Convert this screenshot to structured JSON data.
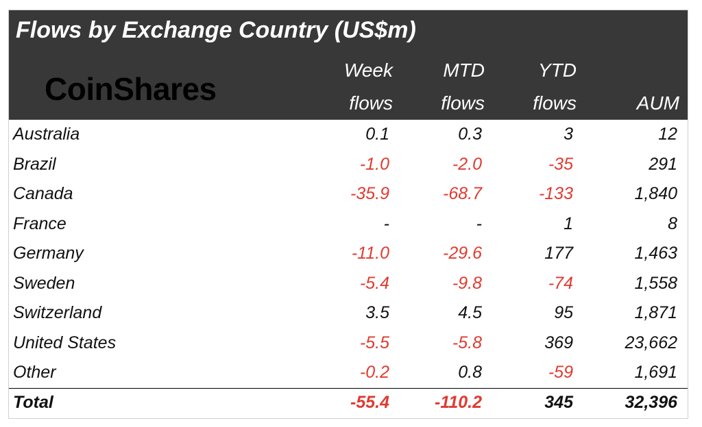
{
  "chart_data": {
    "type": "table",
    "title": "Flows by Exchange Country (US$m)",
    "brand": "CoinShares",
    "columns": [
      {
        "line1": "Week",
        "line2": "flows"
      },
      {
        "line1": "MTD",
        "line2": "flows"
      },
      {
        "line1": "YTD",
        "line2": "flows"
      },
      {
        "line1": "",
        "line2": "AUM"
      }
    ],
    "rows": [
      {
        "country": "Australia",
        "week": "0.1",
        "mtd": "0.3",
        "ytd": "3",
        "aum": "12"
      },
      {
        "country": "Brazil",
        "week": "-1.0",
        "mtd": "-2.0",
        "ytd": "-35",
        "aum": "291"
      },
      {
        "country": "Canada",
        "week": "-35.9",
        "mtd": "-68.7",
        "ytd": "-133",
        "aum": "1,840"
      },
      {
        "country": "France",
        "week": "-",
        "mtd": "-",
        "ytd": "1",
        "aum": "8"
      },
      {
        "country": "Germany",
        "week": "-11.0",
        "mtd": "-29.6",
        "ytd": "177",
        "aum": "1,463"
      },
      {
        "country": "Sweden",
        "week": "-5.4",
        "mtd": "-9.8",
        "ytd": "-74",
        "aum": "1,558"
      },
      {
        "country": "Switzerland",
        "week": "3.5",
        "mtd": "4.5",
        "ytd": "95",
        "aum": "1,871"
      },
      {
        "country": "United States",
        "week": "-5.5",
        "mtd": "-5.8",
        "ytd": "369",
        "aum": "23,662"
      },
      {
        "country": "Other",
        "week": "-0.2",
        "mtd": "0.8",
        "ytd": "-59",
        "aum": "1,691"
      }
    ],
    "total": {
      "country": "Total",
      "week": "-55.4",
      "mtd": "-110.2",
      "ytd": "345",
      "aum": "32,396"
    },
    "colors": {
      "header_bg": "#383838",
      "negative": "#e03a2f",
      "positive": "#111111"
    }
  }
}
